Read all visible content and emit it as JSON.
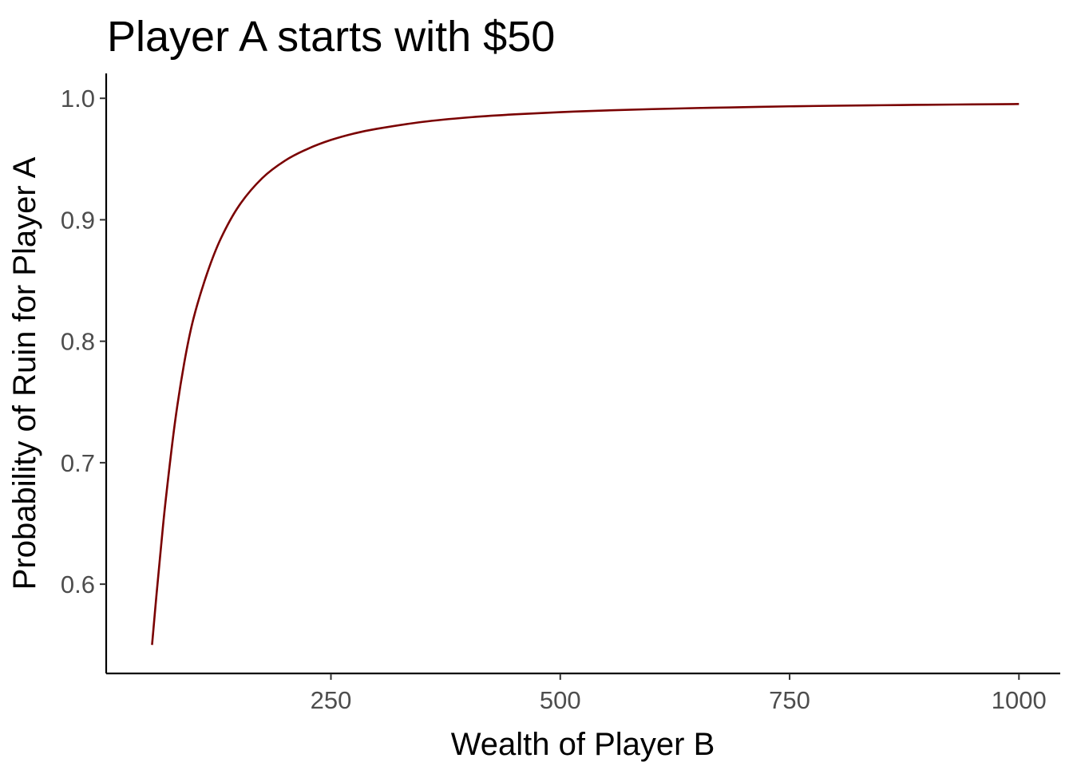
{
  "chart_data": {
    "type": "line",
    "title": "Player A starts with $50",
    "xlabel": "Wealth of Player B",
    "ylabel": "Probability of Ruin for Player A",
    "xlim": [
      5,
      1045
    ],
    "ylim": [
      0.5265,
      1.0205
    ],
    "x_ticks": [
      {
        "value": 250,
        "label": "250"
      },
      {
        "value": 500,
        "label": "500"
      },
      {
        "value": 750,
        "label": "750"
      },
      {
        "value": 1000,
        "label": "1000"
      }
    ],
    "y_ticks": [
      {
        "value": 0.6,
        "label": "0.6"
      },
      {
        "value": 0.7,
        "label": "0.7"
      },
      {
        "value": 0.8,
        "label": "0.8"
      },
      {
        "value": 0.9,
        "label": "0.9"
      },
      {
        "value": 1.0,
        "label": "1.0"
      }
    ],
    "grid": false,
    "legend": "none",
    "series": [
      {
        "color": "#7a0000",
        "x": [
          55,
          60,
          65,
          70,
          80,
          90,
          100,
          115,
          130,
          150,
          175,
          200,
          225,
          250,
          275,
          300,
          350,
          400,
          450,
          500,
          550,
          600,
          650,
          700,
          750,
          800,
          850,
          900,
          950,
          1000
        ],
        "y": [
          0.55,
          0.5926,
          0.6325,
          0.67,
          0.7333,
          0.7818,
          0.8182,
          0.8558,
          0.8846,
          0.9118,
          0.9342,
          0.9487,
          0.9585,
          0.9657,
          0.971,
          0.9749,
          0.9806,
          0.9843,
          0.9868,
          0.9886,
          0.99,
          0.9911,
          0.992,
          0.9927,
          0.9934,
          0.9939,
          0.9943,
          0.9947,
          0.995,
          0.9953
        ]
      }
    ]
  }
}
